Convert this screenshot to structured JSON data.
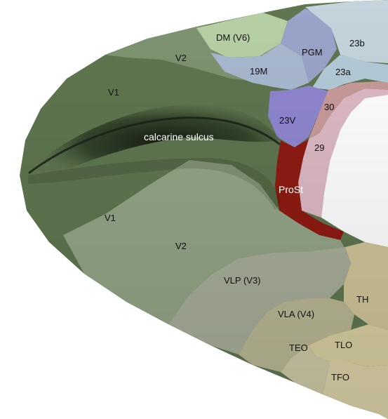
{
  "labels": {
    "dm_v6": "DM (V6)",
    "pgm": "PGM",
    "a23b": "23b",
    "v2_top": "V2",
    "m19": "19M",
    "a23a": "23a",
    "v1_top": "V1",
    "a30": "30",
    "v23": "23V",
    "calcarine": "calcarine sulcus",
    "a29": "29",
    "prost": "ProSt",
    "v1_bottom": "V1",
    "v2_bottom": "V2",
    "vlp_v3": "VLP (V3)",
    "th": "TH",
    "vla_v4": "VLA (V4)",
    "teo": "TEO",
    "tlo": "TLO",
    "tfo": "TFO"
  },
  "colors": {
    "v1": "#5f7650",
    "v2": "#7e9370",
    "v2_light": "#93a486",
    "dm_v6": "#b6cfa4",
    "m19": "#a8b8cf",
    "pgm": "#9aa4c9",
    "area23b": "#c4d3dc",
    "area23a": "#b4cad8",
    "v23": "#8f86cf",
    "area30": "#c89b99",
    "area29": "#ddb9c4",
    "prost": "#8e1b12",
    "vlp_v3": "#a6ad98",
    "vla_v4": "#b9b695",
    "th": "#cfc497",
    "teo": "#cdc9a6",
    "tlo": "#d8cf9f",
    "tfo": "#dbd1a8",
    "sulcus_dark": "#1a2216",
    "background": "#ffffff"
  }
}
